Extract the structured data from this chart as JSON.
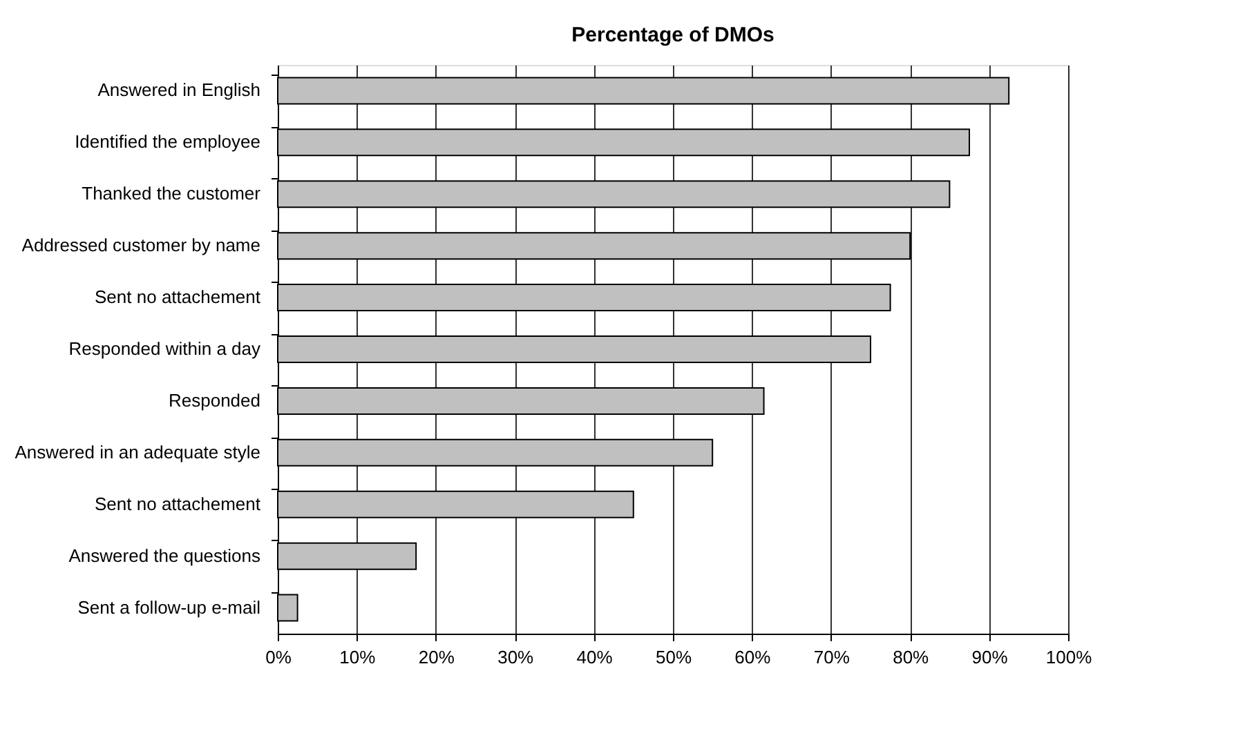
{
  "chart_data": {
    "type": "bar",
    "orientation": "horizontal",
    "title": "Percentage of DMOs",
    "categories": [
      "Answered in English",
      "Identified the employee",
      "Thanked the customer",
      "Addressed customer by name",
      "Sent no attachement",
      "Responded within a day",
      "Responded",
      "Answered in an adequate style",
      "Sent no attachement",
      "Answered the questions",
      "Sent a follow-up e-mail"
    ],
    "values": [
      92.5,
      87.5,
      85,
      80,
      77.5,
      75,
      61.5,
      55,
      45,
      17.5,
      2.5
    ],
    "color": "#c0c0c0",
    "xlim": [
      0,
      100
    ],
    "xticks": [
      {
        "value": 0,
        "label": "0%"
      },
      {
        "value": 10,
        "label": "10%"
      },
      {
        "value": 20,
        "label": "20%"
      },
      {
        "value": 30,
        "label": "30%"
      },
      {
        "value": 40,
        "label": "40%"
      },
      {
        "value": 50,
        "label": "50%"
      },
      {
        "value": 60,
        "label": "60%"
      },
      {
        "value": 70,
        "label": "70%"
      },
      {
        "value": 80,
        "label": "80%"
      },
      {
        "value": 90,
        "label": "90%"
      },
      {
        "value": 100,
        "label": "100%"
      }
    ],
    "grid": "x"
  }
}
